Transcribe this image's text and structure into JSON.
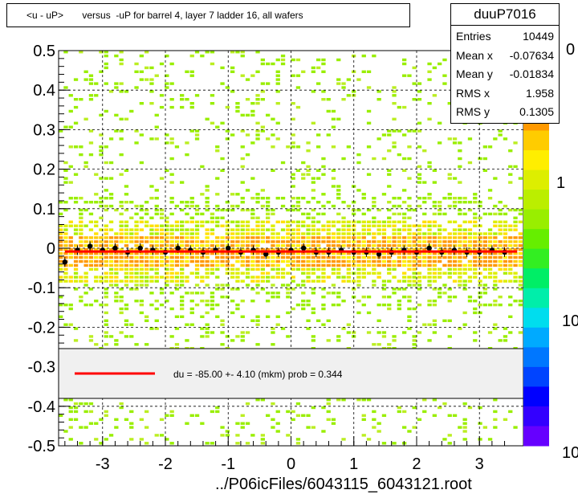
{
  "title": "<u - uP>       versus  -uP for barrel 4, layer 7 ladder 16, all wafers",
  "stats": {
    "name": "duuP7016",
    "rows": [
      {
        "label": "Entries",
        "value": "10449"
      },
      {
        "label": "Mean x",
        "value": "-0.07634"
      },
      {
        "label": "Mean y",
        "value": "-0.01834"
      },
      {
        "label": "RMS x",
        "value": "1.958"
      },
      {
        "label": "RMS y",
        "value": "0.1305"
      }
    ]
  },
  "colorbar_labels": [
    "0",
    "1",
    "10",
    "10"
  ],
  "fit_legend": "du =  -85.00 +-  4.10 (mkm) prob = 0.344",
  "footer": "../P06icFiles/6043115_6043121.root",
  "colors": {
    "fit_line": "#ff0000",
    "profile": "#000000",
    "legend_bg": "#f0f0f0"
  },
  "chart_data": {
    "type": "heatmap",
    "x_ticks": [
      "-3",
      "-2",
      "-1",
      "0",
      "1",
      "2",
      "3"
    ],
    "y_ticks": [
      "0.5",
      "0.4",
      "0.3",
      "0.2",
      "0.1",
      "0",
      "-0.1",
      "-0.2",
      "-0.3",
      "-0.4",
      "-0.5"
    ],
    "xlim": [
      -3.7,
      3.7
    ],
    "ylim": [
      -0.5,
      0.5
    ],
    "grid": true,
    "log_z": true,
    "fit": {
      "slope": 0.0,
      "intercept": -0.0085
    },
    "profile": {
      "x": [
        -3.6,
        -3.4,
        -3.2,
        -3.0,
        -2.8,
        -2.6,
        -2.4,
        -2.2,
        -2.0,
        -1.8,
        -1.6,
        -1.4,
        -1.2,
        -1.0,
        -0.8,
        -0.6,
        -0.4,
        -0.2,
        0.0,
        0.2,
        0.4,
        0.6,
        0.8,
        1.0,
        1.2,
        1.4,
        1.6,
        1.8,
        2.0,
        2.2,
        2.4,
        2.6,
        2.8,
        3.0,
        3.2,
        3.4
      ],
      "y": [
        -0.035,
        -0.005,
        0.005,
        -0.005,
        0.0,
        -0.01,
        0.0,
        -0.005,
        -0.01,
        0.0,
        -0.005,
        -0.01,
        -0.005,
        0.0,
        -0.01,
        -0.005,
        -0.015,
        -0.01,
        -0.005,
        0.0,
        -0.01,
        -0.01,
        -0.005,
        -0.01,
        -0.01,
        -0.015,
        -0.01,
        -0.005,
        -0.01,
        0.0,
        -0.01,
        -0.005,
        -0.01,
        -0.01,
        -0.005,
        -0.01
      ]
    }
  }
}
